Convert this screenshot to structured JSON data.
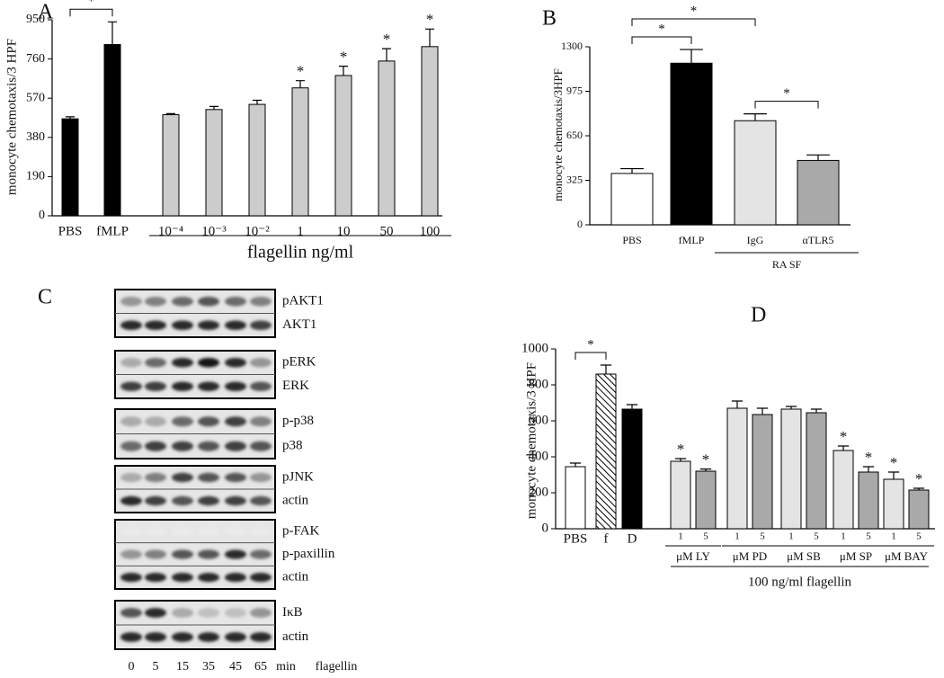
{
  "chart_data": [
    {
      "type": "bar",
      "panel": "A",
      "ylabel": "monocyte chemotaxis/3 HPF",
      "categories": [
        "PBS",
        "fMLP",
        "10⁻⁴",
        "10⁻³",
        "10⁻²",
        "1",
        "10",
        "50",
        "100"
      ],
      "values": [
        470,
        830,
        490,
        515,
        540,
        620,
        680,
        750,
        820
      ],
      "errors": [
        10,
        110,
        5,
        15,
        20,
        35,
        45,
        60,
        85
      ],
      "colors": [
        "#000000",
        "#000000",
        "#cccccc",
        "#cccccc",
        "#cccccc",
        "#cccccc",
        "#cccccc",
        "#cccccc",
        "#cccccc"
      ],
      "stars": [
        null,
        null,
        null,
        null,
        null,
        "*",
        "*",
        "*",
        "*"
      ],
      "brackets": [
        {
          "label": "*",
          "from": "PBS",
          "to": "fMLP"
        }
      ],
      "groups": [
        {
          "label": "flagellin ng/ml",
          "start": 2,
          "end": 8
        }
      ],
      "ylim": [
        0,
        950
      ],
      "yticks": [
        0,
        190,
        380,
        570,
        760,
        950
      ]
    },
    {
      "type": "bar",
      "panel": "B",
      "ylabel": "monocyte chemotaxis/3HPF",
      "categories": [
        "PBS",
        "fMLP",
        "IgG",
        "αTLR5"
      ],
      "values": [
        375,
        1180,
        760,
        470
      ],
      "errors": [
        35,
        100,
        50,
        40
      ],
      "colors": [
        "#ffffff",
        "#000000",
        "#e4e4e4",
        "#a9a9a9"
      ],
      "brackets": [
        {
          "label": "*",
          "from": "PBS",
          "to": "fMLP"
        },
        {
          "label": "*",
          "from": "PBS",
          "to": "IgG"
        },
        {
          "label": "*",
          "from": "IgG",
          "to": "αTLR5"
        }
      ],
      "groups": [
        {
          "label": "RA SF",
          "start": 2,
          "end": 3
        }
      ],
      "ylim": [
        0,
        1300
      ],
      "yticks": [
        0,
        325,
        650,
        975,
        1300
      ]
    },
    {
      "type": "bar",
      "panel": "D",
      "ylabel": "monocyte chemotaxis/3 HPF",
      "categories": [
        "PBS",
        "f",
        "D",
        "1",
        "5",
        "1",
        "5",
        "1",
        "5",
        "1",
        "5",
        "1",
        "5"
      ],
      "values": [
        345,
        860,
        665,
        375,
        320,
        670,
        635,
        665,
        645,
        435,
        315,
        275,
        215
      ],
      "errors": [
        20,
        50,
        25,
        15,
        12,
        40,
        35,
        15,
        20,
        25,
        30,
        40,
        10
      ],
      "colors": [
        "#ffffff",
        "#ffffff",
        "#000000",
        "#e4e4e4",
        "#a9a9a9",
        "#e4e4e4",
        "#a9a9a9",
        "#e4e4e4",
        "#a9a9a9",
        "#e4e4e4",
        "#a9a9a9",
        "#e4e4e4",
        "#a9a9a9"
      ],
      "patterns": [
        null,
        "hatched",
        null,
        null,
        null,
        null,
        null,
        null,
        null,
        null,
        null,
        null,
        null
      ],
      "stars": [
        null,
        null,
        null,
        "*",
        "*",
        null,
        null,
        null,
        null,
        "*",
        "*",
        "*",
        "*"
      ],
      "brackets": [
        {
          "label": "*",
          "from": "PBS",
          "to": "f"
        }
      ],
      "groups": [
        {
          "label": "μM LY",
          "start": 3,
          "end": 4
        },
        {
          "label": "μM PD",
          "start": 5,
          "end": 6
        },
        {
          "label": "μM SB",
          "start": 7,
          "end": 8
        },
        {
          "label": "μM SP",
          "start": 9,
          "end": 10
        },
        {
          "label": "μM BAY",
          "start": 11,
          "end": 12
        },
        {
          "label": "100 ng/ml flagellin",
          "start": 3,
          "end": 12
        }
      ],
      "ylim": [
        0,
        1000
      ],
      "yticks": [
        0,
        200,
        400,
        600,
        800,
        1000
      ]
    }
  ],
  "blot": {
    "panel": "C",
    "groups": [
      {
        "rows": [
          {
            "label": "pAKT1",
            "intensity": [
              0.4,
              0.5,
              0.6,
              0.7,
              0.6,
              0.5
            ]
          },
          {
            "label": "AKT1",
            "intensity": [
              0.9,
              0.9,
              0.9,
              0.9,
              0.9,
              0.8
            ]
          }
        ]
      },
      {
        "rows": [
          {
            "label": "pERK",
            "intensity": [
              0.3,
              0.6,
              0.9,
              1,
              0.9,
              0.4
            ]
          },
          {
            "label": "ERK",
            "intensity": [
              0.8,
              0.8,
              0.9,
              0.9,
              0.9,
              0.7
            ]
          }
        ]
      },
      {
        "rows": [
          {
            "label": "p-p38",
            "intensity": [
              0.3,
              0.3,
              0.6,
              0.7,
              0.8,
              0.5
            ]
          },
          {
            "label": "p38",
            "intensity": [
              0.6,
              0.8,
              0.8,
              0.7,
              0.8,
              0.7
            ]
          }
        ]
      },
      {
        "rows": [
          {
            "label": "pJNK",
            "intensity": [
              0.3,
              0.5,
              0.8,
              0.7,
              0.7,
              0.4
            ]
          },
          {
            "label": "actin",
            "intensity": [
              0.9,
              0.8,
              0.7,
              0.8,
              0.8,
              0.7
            ]
          }
        ]
      },
      {
        "rows": [
          {
            "label": "p-FAK",
            "intensity": [
              0,
              0,
              0,
              0,
              0,
              0
            ]
          },
          {
            "label": "p-paxillin",
            "intensity": [
              0.4,
              0.5,
              0.7,
              0.7,
              0.9,
              0.6
            ]
          },
          {
            "label": "actin",
            "intensity": [
              0.9,
              0.9,
              0.9,
              0.9,
              0.9,
              0.9
            ]
          }
        ]
      },
      {
        "rows": [
          {
            "label": "IκB",
            "intensity": [
              0.7,
              0.9,
              0.3,
              0.2,
              0.2,
              0.4
            ]
          },
          {
            "label": "actin",
            "intensity": [
              0.9,
              0.9,
              0.9,
              0.9,
              0.9,
              0.9
            ]
          }
        ]
      }
    ],
    "times": [
      0,
      5,
      15,
      35,
      45,
      65
    ],
    "unit": "min",
    "treatment": "flagellin"
  }
}
